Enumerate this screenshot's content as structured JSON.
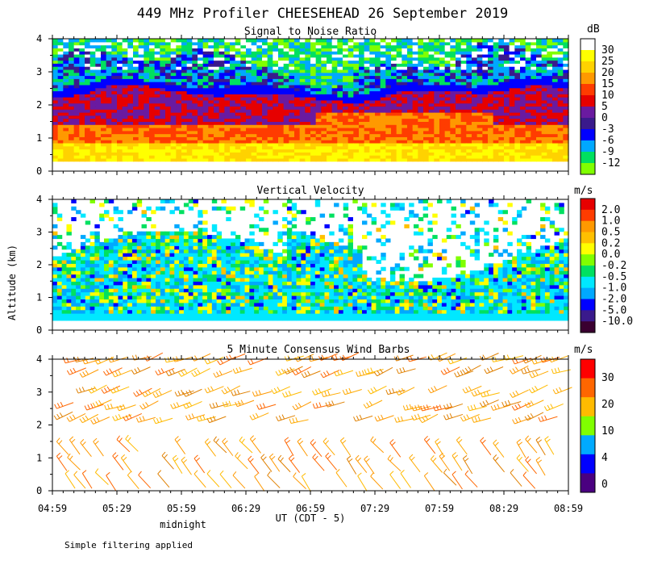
{
  "figure": {
    "title": "449 MHz Profiler CHEESEHEAD 26 September 2019",
    "ylabel": "Altitude (km)",
    "xlabel": "UT  (CDT - 5)",
    "midnight_label": "midnight",
    "footnote": "Simple filtering applied"
  },
  "chart_data": [
    {
      "type": "heatmap",
      "title": "Signal to Noise Ratio",
      "units": "dB",
      "xlim_minutes_from_0459": [
        0,
        240
      ],
      "ylim_km": [
        0,
        4
      ],
      "yticks": [
        "0",
        "1",
        "2",
        "3",
        "4"
      ],
      "colorbar_labels": [
        "30",
        "25",
        "20",
        "15",
        "10",
        "5",
        "0",
        "-3",
        "-6",
        "-9",
        "-12"
      ],
      "colorbar_colors": [
        "#ffffff",
        "#ffff00",
        "#ffd200",
        "#ff9900",
        "#ff3c00",
        "#e60000",
        "#6a1aa0",
        "#3a1a8c",
        "#0000ff",
        "#00a8ff",
        "#00e060",
        "#80ff00"
      ],
      "profile_bands_km": [
        {
          "from": 0.3,
          "to": 0.8,
          "level": "20-30"
        },
        {
          "from": 0.8,
          "to": 1.4,
          "level": "10-20"
        },
        {
          "from": 1.4,
          "to": 2.4,
          "level": "0-10"
        },
        {
          "from": 2.4,
          "to": 3.2,
          "level": "-6-0"
        },
        {
          "from": 3.2,
          "to": 4.0,
          "level": "-12--6"
        }
      ]
    },
    {
      "type": "heatmap",
      "title": "Vertical Velocity",
      "units": "m/s",
      "xlim_minutes_from_0459": [
        0,
        240
      ],
      "ylim_km": [
        0,
        4
      ],
      "yticks": [
        "0",
        "1",
        "2",
        "3",
        "4"
      ],
      "colorbar_labels": [
        "2.0",
        "1.0",
        "0.5",
        "0.2",
        "0.0",
        "-0.2",
        "-0.5",
        "-1.0",
        "-2.0",
        "-5.0",
        "-10.0"
      ],
      "colorbar_colors": [
        "#e60000",
        "#ff3c00",
        "#ff9900",
        "#ffc000",
        "#ffff00",
        "#80ff00",
        "#00e060",
        "#00e8ff",
        "#00a8ff",
        "#0000ff",
        "#3a1a8c",
        "#3a0030"
      ]
    },
    {
      "type": "wind_barbs",
      "title": "5 Minute Consensus Wind Barbs",
      "units": "m/s",
      "xlim_minutes_from_0459": [
        0,
        240
      ],
      "ylim_km": [
        0,
        4
      ],
      "yticks": [
        "0",
        "1",
        "2",
        "3",
        "4"
      ],
      "colorbar_labels": [
        "30",
        "20",
        "10",
        "4",
        "0"
      ],
      "colorbar_colors": [
        "#ff0000",
        "#ff6600",
        "#ffbb00",
        "#80ff00",
        "#00aaff",
        "#0000ff",
        "#4a0080"
      ],
      "barb_rows": [
        {
          "altitude_km": 3.9,
          "speed_ms": 18
        },
        {
          "altitude_km": 3.5,
          "speed_ms": 20
        },
        {
          "altitude_km": 2.9,
          "speed_ms": 22
        },
        {
          "altitude_km": 2.5,
          "speed_ms": 24
        },
        {
          "altitude_km": 2.1,
          "speed_ms": 20
        },
        {
          "altitude_km": 1.5,
          "speed_ms": 16
        },
        {
          "altitude_km": 1.0,
          "speed_ms": 14
        },
        {
          "altitude_km": 0.5,
          "speed_ms": 10
        }
      ]
    }
  ],
  "x_axis": {
    "tick_labels": [
      "04:59",
      "05:29",
      "05:59",
      "06:29",
      "06:59",
      "07:29",
      "07:59",
      "08:29",
      "08:59"
    ],
    "tick_minutes": [
      0,
      30,
      60,
      90,
      120,
      150,
      180,
      210,
      240
    ]
  }
}
